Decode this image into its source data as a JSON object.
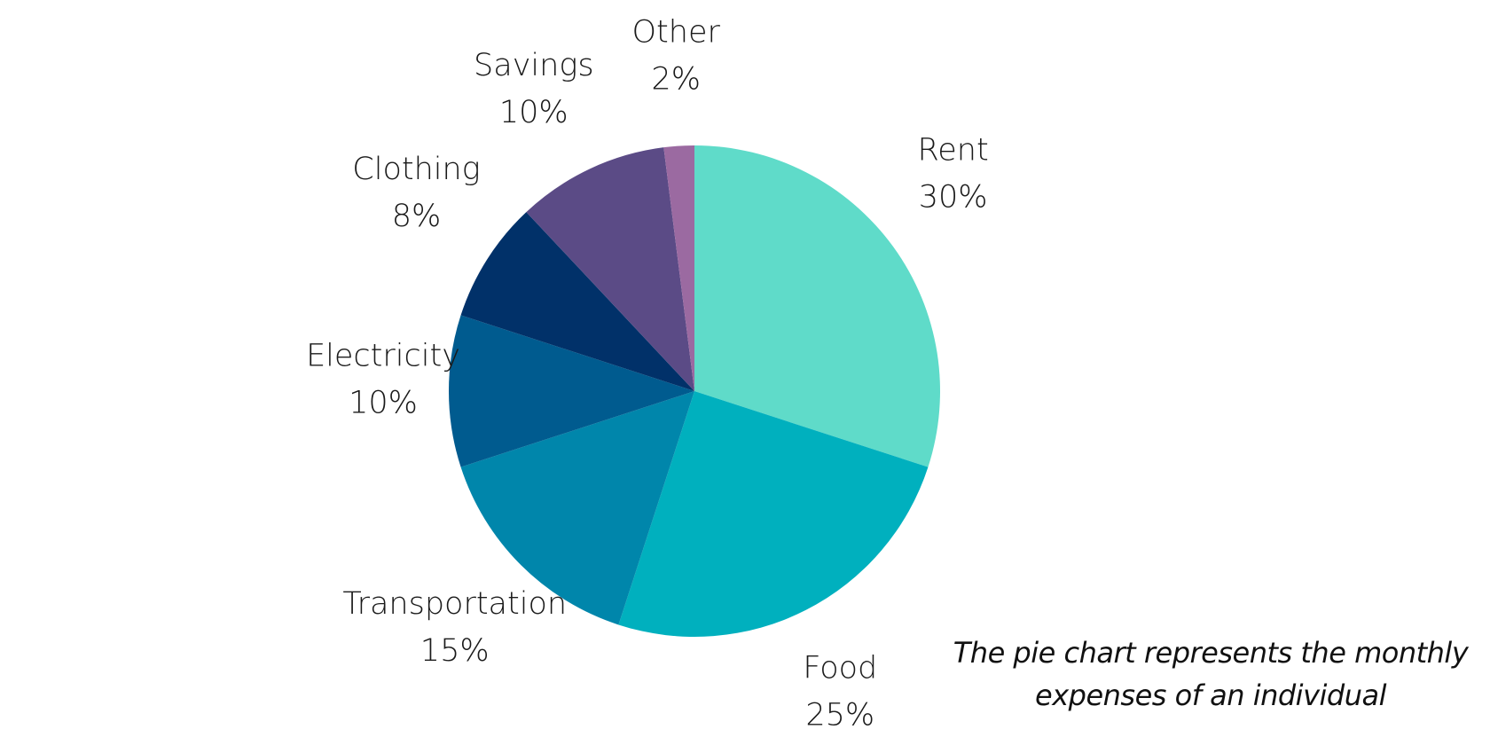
{
  "chart_data": {
    "type": "pie",
    "title": "",
    "caption": "The pie chart represents the monthly expenses of an individual",
    "categories": [
      "Rent",
      "Food",
      "Transportation",
      "Electricity",
      "Clothing",
      "Savings",
      "Other"
    ],
    "values": [
      30,
      25,
      15,
      10,
      8,
      10,
      2
    ],
    "value_labels": [
      "30%",
      "25%",
      "15%",
      "10%",
      "8%",
      "10%",
      "2%"
    ],
    "colors": [
      "#5fdbc9",
      "#00b0be",
      "#0086ab",
      "#005b8f",
      "#013169",
      "#5b4b86",
      "#9b6aa1"
    ],
    "start_angle": "12 o'clock",
    "direction": "clockwise"
  }
}
